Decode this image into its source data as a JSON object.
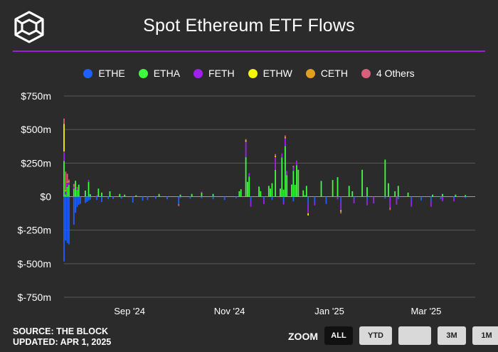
{
  "header": {
    "title": "Spot Ethereum ETF Flows"
  },
  "legend": [
    {
      "label": "ETHE",
      "color": "#1f5fff"
    },
    {
      "label": "ETHA",
      "color": "#3dff3d"
    },
    {
      "label": "FETH",
      "color": "#a020f0"
    },
    {
      "label": "ETHW",
      "color": "#f5f50a"
    },
    {
      "label": "CETH",
      "color": "#e0a020"
    },
    {
      "label": "4 Others",
      "color": "#d9607a"
    }
  ],
  "footer": {
    "source": "SOURCE: THE BLOCK",
    "updated": "UPDATED: APR 1, 2025"
  },
  "zoom": {
    "label": "ZOOM",
    "buttons": [
      "ALL",
      "YTD",
      "",
      "3M",
      "1M"
    ],
    "active": "ALL"
  },
  "chart_data": {
    "type": "bar",
    "stacked": true,
    "title": "Spot Ethereum ETF Flows",
    "ylim": [
      -750,
      750
    ],
    "yticks": [
      750,
      500,
      250,
      0,
      -250,
      -500,
      -750
    ],
    "ytick_labels": [
      "$750m",
      "$500m",
      "$250m",
      "$0",
      "$-250m",
      "$-500m",
      "$-750m"
    ],
    "xtick_labels": [
      "Sep '24",
      "Nov '24",
      "Jan '25",
      "Mar '25"
    ],
    "xtick_dates": [
      "2024-09-01",
      "2024-11-01",
      "2025-01-01",
      "2025-03-01"
    ],
    "x_range": [
      "2024-07-23",
      "2025-03-31"
    ],
    "series": [
      {
        "name": "ETHE",
        "color": "#1f5fff",
        "values": [
          [
            "2024-07-23",
            -484
          ],
          [
            "2024-07-24",
            -327
          ],
          [
            "2024-07-25",
            -346
          ],
          [
            "2024-07-26",
            -356
          ],
          [
            "2024-07-29",
            -210
          ],
          [
            "2024-07-30",
            -120
          ],
          [
            "2024-07-31",
            -77
          ],
          [
            "2024-08-01",
            -61
          ],
          [
            "2024-08-02",
            -53
          ],
          [
            "2024-08-05",
            -47
          ],
          [
            "2024-08-06",
            -39
          ],
          [
            "2024-08-07",
            -30
          ],
          [
            "2024-08-08",
            -23
          ],
          [
            "2024-08-12",
            -25
          ],
          [
            "2024-08-15",
            -40
          ],
          [
            "2024-08-19",
            -20
          ],
          [
            "2024-08-22",
            -18
          ],
          [
            "2024-08-27",
            -15
          ],
          [
            "2024-09-03",
            -45
          ],
          [
            "2024-09-09",
            -30
          ],
          [
            "2024-09-12",
            -25
          ],
          [
            "2024-09-17",
            -15
          ],
          [
            "2024-09-24",
            -20
          ],
          [
            "2024-10-01",
            -55
          ],
          [
            "2024-10-08",
            -15
          ],
          [
            "2024-10-15",
            -12
          ],
          [
            "2024-10-22",
            -20
          ],
          [
            "2024-10-29",
            -25
          ],
          [
            "2024-11-05",
            -12
          ],
          [
            "2024-11-14",
            -30
          ],
          [
            "2024-11-22",
            -20
          ],
          [
            "2024-11-27",
            -25
          ],
          [
            "2024-12-04",
            -40
          ],
          [
            "2024-12-10",
            -35
          ],
          [
            "2024-12-19",
            -50
          ],
          [
            "2024-12-23",
            -40
          ],
          [
            "2024-12-30",
            -55
          ],
          [
            "2025-01-08",
            -40
          ],
          [
            "2025-01-16",
            -20
          ],
          [
            "2025-01-24",
            -25
          ],
          [
            "2025-02-04",
            -15
          ],
          [
            "2025-02-12",
            -20
          ],
          [
            "2025-02-20",
            -25
          ],
          [
            "2025-02-26",
            -30
          ],
          [
            "2025-03-04",
            -35
          ],
          [
            "2025-03-10",
            -20
          ],
          [
            "2025-03-18",
            -15
          ],
          [
            "2025-03-25",
            -10
          ]
        ]
      },
      {
        "name": "ETHA",
        "color": "#3dff3d",
        "values": [
          [
            "2024-07-23",
            266
          ],
          [
            "2024-07-24",
            17
          ],
          [
            "2024-07-25",
            72
          ],
          [
            "2024-07-26",
            87
          ],
          [
            "2024-07-29",
            58
          ],
          [
            "2024-07-30",
            118
          ],
          [
            "2024-07-31",
            50
          ],
          [
            "2024-08-01",
            89
          ],
          [
            "2024-08-05",
            45
          ],
          [
            "2024-08-07",
            109
          ],
          [
            "2024-08-08",
            18
          ],
          [
            "2024-08-13",
            60
          ],
          [
            "2024-08-15",
            30
          ],
          [
            "2024-08-20",
            40
          ],
          [
            "2024-08-26",
            20
          ],
          [
            "2024-08-29",
            15
          ],
          [
            "2024-09-05",
            10
          ],
          [
            "2024-09-19",
            20
          ],
          [
            "2024-10-02",
            15
          ],
          [
            "2024-10-09",
            20
          ],
          [
            "2024-10-15",
            30
          ],
          [
            "2024-10-22",
            20
          ],
          [
            "2024-11-07",
            40
          ],
          [
            "2024-11-08",
            55
          ],
          [
            "2024-11-11",
            294
          ],
          [
            "2024-11-12",
            110
          ],
          [
            "2024-11-13",
            150
          ],
          [
            "2024-11-19",
            75
          ],
          [
            "2024-11-20",
            40
          ],
          [
            "2024-11-25",
            80
          ],
          [
            "2024-11-26",
            60
          ],
          [
            "2024-11-27",
            100
          ],
          [
            "2024-11-29",
            199
          ],
          [
            "2024-12-02",
            60
          ],
          [
            "2024-12-03",
            292
          ],
          [
            "2024-12-04",
            52
          ],
          [
            "2024-12-05",
            377
          ],
          [
            "2024-12-06",
            160
          ],
          [
            "2024-12-09",
            90
          ],
          [
            "2024-12-10",
            193
          ],
          [
            "2024-12-11",
            88
          ],
          [
            "2024-12-12",
            234
          ],
          [
            "2024-12-13",
            200
          ],
          [
            "2024-12-16",
            47
          ],
          [
            "2024-12-17",
            10
          ],
          [
            "2024-12-18",
            80
          ],
          [
            "2024-12-27",
            117
          ],
          [
            "2025-01-03",
            124
          ],
          [
            "2025-01-06",
            145
          ],
          [
            "2025-01-13",
            80
          ],
          [
            "2025-01-15",
            40
          ],
          [
            "2025-01-21",
            200
          ],
          [
            "2025-01-24",
            70
          ],
          [
            "2025-02-04",
            276
          ],
          [
            "2025-02-06",
            100
          ],
          [
            "2025-02-10",
            40
          ],
          [
            "2025-02-12",
            80
          ],
          [
            "2025-02-18",
            30
          ],
          [
            "2025-03-05",
            15
          ],
          [
            "2025-03-11",
            20
          ],
          [
            "2025-03-19",
            15
          ],
          [
            "2025-03-25",
            12
          ]
        ]
      },
      {
        "name": "FETH",
        "color": "#a020f0",
        "values": [
          [
            "2024-07-23",
            71
          ],
          [
            "2024-07-24",
            22
          ],
          [
            "2024-07-25",
            33
          ],
          [
            "2024-07-26",
            20
          ],
          [
            "2024-07-29",
            15
          ],
          [
            "2024-07-31",
            10
          ],
          [
            "2024-08-07",
            15
          ],
          [
            "2024-08-12",
            10
          ],
          [
            "2024-10-02",
            -10
          ],
          [
            "2024-10-15",
            8
          ],
          [
            "2024-11-11",
            115
          ],
          [
            "2024-11-13",
            25
          ],
          [
            "2024-11-14",
            -45
          ],
          [
            "2024-11-22",
            -35
          ],
          [
            "2024-11-29",
            95
          ],
          [
            "2024-12-03",
            30
          ],
          [
            "2024-12-04",
            -18
          ],
          [
            "2024-12-05",
            58
          ],
          [
            "2024-12-06",
            32
          ],
          [
            "2024-12-10",
            23
          ],
          [
            "2024-12-12",
            35
          ],
          [
            "2024-12-19",
            -75
          ],
          [
            "2024-12-23",
            -25
          ],
          [
            "2025-01-06",
            -20
          ],
          [
            "2025-01-08",
            -61
          ],
          [
            "2025-01-16",
            -30
          ],
          [
            "2025-01-24",
            -40
          ],
          [
            "2025-01-28",
            -50
          ],
          [
            "2025-02-07",
            -80
          ],
          [
            "2025-02-11",
            -60
          ],
          [
            "2025-02-20",
            -50
          ],
          [
            "2025-03-04",
            -40
          ],
          [
            "2025-03-11",
            -35
          ],
          [
            "2025-03-18",
            -20
          ]
        ]
      },
      {
        "name": "ETHW",
        "color": "#f5f50a",
        "values": [
          [
            "2024-07-23",
            204
          ],
          [
            "2024-07-24",
            8
          ],
          [
            "2024-07-25",
            6
          ],
          [
            "2024-07-26",
            5
          ],
          [
            "2024-11-11",
            10
          ],
          [
            "2024-11-29",
            8
          ],
          [
            "2024-12-05",
            7
          ],
          [
            "2024-12-19",
            -15
          ],
          [
            "2025-01-08",
            -10
          ]
        ]
      },
      {
        "name": "CETH",
        "color": "#e0a020",
        "values": [
          [
            "2024-07-23",
            4
          ],
          [
            "2024-07-29",
            3
          ],
          [
            "2024-12-05",
            4
          ],
          [
            "2024-12-10",
            3
          ]
        ]
      },
      {
        "name": "4 Others",
        "color": "#d9607a",
        "values": [
          [
            "2024-07-23",
            37
          ],
          [
            "2024-07-24",
            140
          ],
          [
            "2024-07-25",
            60
          ],
          [
            "2024-07-26",
            15
          ],
          [
            "2024-07-29",
            18
          ],
          [
            "2024-07-31",
            10
          ],
          [
            "2024-10-01",
            -15
          ],
          [
            "2024-11-11",
            10
          ],
          [
            "2024-11-29",
            15
          ],
          [
            "2024-12-05",
            10
          ],
          [
            "2024-12-10",
            12
          ],
          [
            "2025-01-08",
            -15
          ],
          [
            "2025-02-07",
            -20
          ]
        ]
      }
    ]
  }
}
